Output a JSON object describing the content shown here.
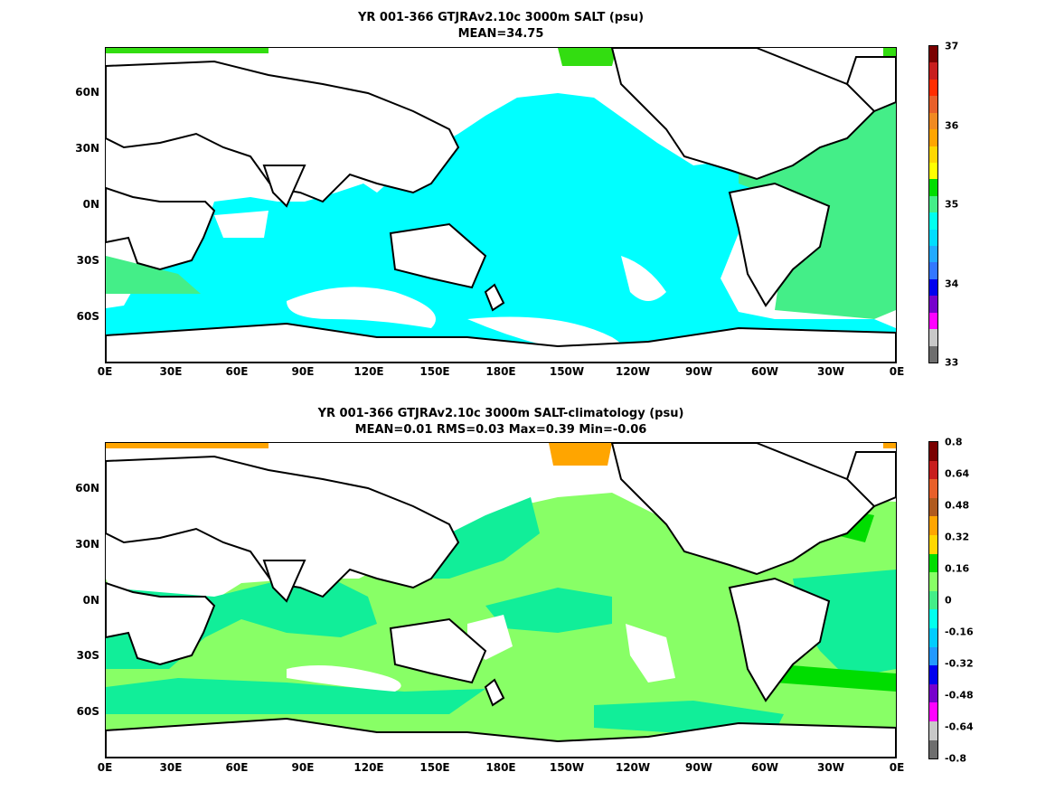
{
  "chart_data": [
    {
      "type": "heatmap",
      "title": "YR 001-366 GTJRAv2.10c 3000m SALT (psu)",
      "subtitle": "MEAN=34.75",
      "xticks": [
        "0E",
        "30E",
        "60E",
        "90E",
        "120E",
        "150E",
        "180E",
        "150W",
        "120W",
        "90W",
        "60W",
        "30W",
        "0E"
      ],
      "yticks": [
        "60N",
        "30N",
        "0N",
        "30S",
        "60S"
      ],
      "colorbar": {
        "ticks": [
          "37",
          "36",
          "35",
          "34",
          "33"
        ],
        "colors": [
          "#7a0000",
          "#c81e1e",
          "#ff2d00",
          "#e8602a",
          "#f08a22",
          "#ffa500",
          "#ffd700",
          "#ffff00",
          "#00dd00",
          "#44ee88",
          "#00ffee",
          "#00ddff",
          "#22aaff",
          "#3377ff",
          "#0000ee",
          "#7700cc",
          "#ff00ff",
          "#c8c8c8",
          "#6e6e6e"
        ]
      },
      "dominant_value": "34.75 (cyan, deep Pacific/Indian/Southern Ocean)",
      "atlantic_value": "~35.0 (green)"
    },
    {
      "type": "heatmap",
      "title": "YR 001-366 GTJRAv2.10c 3000m SALT-climatology (psu)",
      "subtitle": "MEAN=0.01   RMS=0.03   Max=0.39   Min=-0.06",
      "xticks": [
        "0E",
        "30E",
        "60E",
        "90E",
        "120E",
        "150E",
        "180E",
        "150W",
        "120W",
        "90W",
        "60W",
        "30W",
        "0E"
      ],
      "yticks": [
        "60N",
        "30N",
        "0N",
        "30S",
        "60S"
      ],
      "colorbar": {
        "ticks": [
          "0.8",
          "0.64",
          "0.48",
          "0.32",
          "0.16",
          "0",
          "-0.16",
          "-0.32",
          "-0.48",
          "-0.64",
          "-0.8"
        ],
        "colors": [
          "#7a0000",
          "#c81e1e",
          "#e8602a",
          "#b05a1e",
          "#ffa500",
          "#ffd700",
          "#00dd00",
          "#88ff66",
          "#44ee88",
          "#00ffee",
          "#00ccff",
          "#2299ff",
          "#0000ee",
          "#7700cc",
          "#ff00ff",
          "#c8c8c8",
          "#6e6e6e"
        ]
      }
    }
  ],
  "colors": {
    "land": "#ffffff",
    "top_ocean": "#00ffff",
    "top_atlantic": "#44ee88",
    "top_arctic": "#33dd11",
    "diff_light": "#88ff66",
    "diff_mint": "#11ee99",
    "diff_green": "#00dd00",
    "diff_orange": "#ffa500"
  }
}
